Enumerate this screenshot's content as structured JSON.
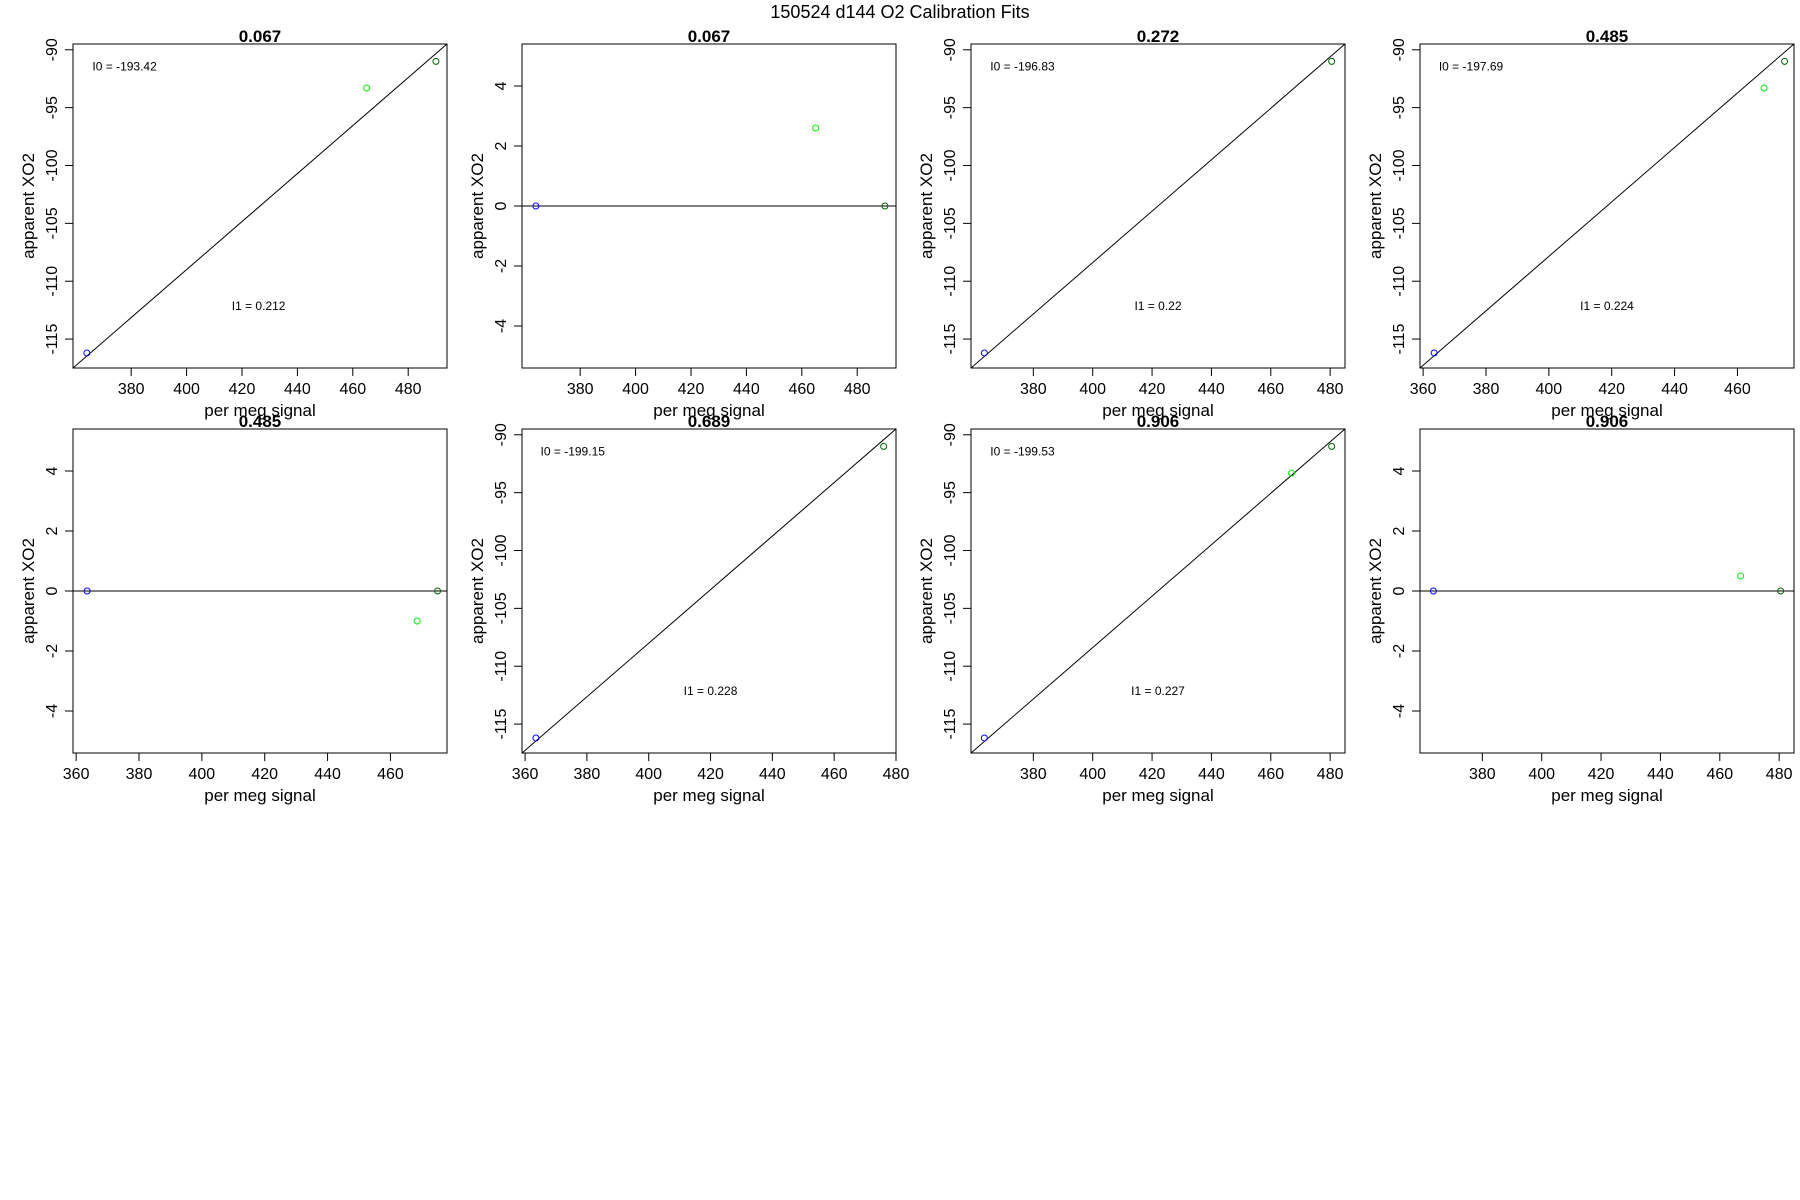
{
  "figure": {
    "title": "150524   d144   O2 Calibration Fits",
    "colors": {
      "axis": "#000000",
      "line": "#000000",
      "point_blue": "#0000ff",
      "point_light_green": "#00ee00",
      "point_dark_green": "#006400"
    }
  },
  "chart_data": [
    {
      "type": "scatter",
      "title": "0.067",
      "xlabel": "per meg signal",
      "ylabel": "apparent XO2",
      "xlim": [
        359,
        494
      ],
      "ylim": [
        -117.5,
        -89.5
      ],
      "xticks": [
        380,
        400,
        420,
        440,
        460,
        480
      ],
      "yticks": [
        -115,
        -110,
        -105,
        -100,
        -95,
        -90
      ],
      "points": [
        {
          "x": 364,
          "y": -116.2,
          "color": "point_blue"
        },
        {
          "x": 465,
          "y": -93.3,
          "color": "point_light_green"
        },
        {
          "x": 490,
          "y": -91.0,
          "color": "point_dark_green"
        }
      ],
      "fit_line": {
        "x": [
          359,
          494
        ],
        "y": [
          -117.5,
          -89.5
        ]
      },
      "annotations": [
        {
          "text": "I0 =  -193.42",
          "x": 366,
          "y": -91.8,
          "anchor": "start"
        },
        {
          "text": "I1 =  0.212",
          "x": 426,
          "y": -112.5,
          "anchor": "middle"
        }
      ]
    },
    {
      "type": "scatter",
      "title": "0.067",
      "xlabel": "per meg signal",
      "ylabel": "apparent XO2",
      "xlim": [
        359,
        494
      ],
      "ylim": [
        -5.4,
        5.4
      ],
      "xticks": [
        380,
        400,
        420,
        440,
        460,
        480
      ],
      "yticks": [
        -4,
        -2,
        0,
        2,
        4
      ],
      "points": [
        {
          "x": 364,
          "y": 0,
          "color": "point_blue"
        },
        {
          "x": 465,
          "y": 2.6,
          "color": "point_light_green"
        },
        {
          "x": 490,
          "y": 0,
          "color": "point_dark_green"
        }
      ],
      "fit_line": {
        "x": [
          359,
          494
        ],
        "y": [
          0,
          0
        ]
      },
      "annotations": []
    },
    {
      "type": "scatter",
      "title": "0.272",
      "xlabel": "per meg signal",
      "ylabel": "apparent XO2",
      "xlim": [
        359,
        485
      ],
      "ylim": [
        -117.5,
        -89.5
      ],
      "xticks": [
        380,
        400,
        420,
        440,
        460,
        480
      ],
      "yticks": [
        -115,
        -110,
        -105,
        -100,
        -95,
        -90
      ],
      "points": [
        {
          "x": 363.5,
          "y": -116.2,
          "color": "point_blue"
        },
        {
          "x": 480.5,
          "y": -91.0,
          "color": "point_dark_green"
        }
      ],
      "fit_line": {
        "x": [
          359,
          485
        ],
        "y": [
          -117.5,
          -89.5
        ]
      },
      "annotations": [
        {
          "text": "I0 =  -196.83",
          "x": 365.5,
          "y": -91.8,
          "anchor": "start"
        },
        {
          "text": "I1 =  0.22",
          "x": 422,
          "y": -112.5,
          "anchor": "middle"
        }
      ]
    },
    {
      "type": "scatter",
      "title": "0.485",
      "xlabel": "per meg signal",
      "ylabel": "apparent XO2",
      "xlim": [
        359,
        478
      ],
      "ylim": [
        -117.5,
        -89.5
      ],
      "xticks": [
        360,
        380,
        400,
        420,
        440,
        460
      ],
      "yticks": [
        -115,
        -110,
        -105,
        -100,
        -95,
        -90
      ],
      "points": [
        {
          "x": 363.5,
          "y": -116.2,
          "color": "point_blue"
        },
        {
          "x": 468.5,
          "y": -93.3,
          "color": "point_light_green"
        },
        {
          "x": 475,
          "y": -91.0,
          "color": "point_dark_green"
        }
      ],
      "fit_line": {
        "x": [
          359,
          478
        ],
        "y": [
          -117.5,
          -89.5
        ]
      },
      "annotations": [
        {
          "text": "I0 =  -197.69",
          "x": 365,
          "y": -91.8,
          "anchor": "start"
        },
        {
          "text": "I1 =  0.224",
          "x": 418.5,
          "y": -112.5,
          "anchor": "middle"
        }
      ]
    },
    {
      "type": "scatter",
      "title": "0.485",
      "xlabel": "per meg signal",
      "ylabel": "apparent XO2",
      "xlim": [
        359,
        478
      ],
      "ylim": [
        -5.4,
        5.4
      ],
      "xticks": [
        360,
        380,
        400,
        420,
        440,
        460
      ],
      "yticks": [
        -4,
        -2,
        0,
        2,
        4
      ],
      "points": [
        {
          "x": 363.5,
          "y": 0,
          "color": "point_blue"
        },
        {
          "x": 468.5,
          "y": -1.0,
          "color": "point_light_green"
        },
        {
          "x": 475,
          "y": 0,
          "color": "point_dark_green"
        }
      ],
      "fit_line": {
        "x": [
          359,
          478
        ],
        "y": [
          0,
          0
        ]
      },
      "annotations": []
    },
    {
      "type": "scatter",
      "title": "0.689",
      "xlabel": "per meg signal",
      "ylabel": "apparent XO2",
      "xlim": [
        359,
        480
      ],
      "ylim": [
        -117.5,
        -89.5
      ],
      "xticks": [
        360,
        380,
        400,
        420,
        440,
        460,
        480
      ],
      "yticks": [
        -115,
        -110,
        -105,
        -100,
        -95,
        -90
      ],
      "points": [
        {
          "x": 363.5,
          "y": -116.2,
          "color": "point_blue"
        },
        {
          "x": 476,
          "y": -91.0,
          "color": "point_dark_green"
        }
      ],
      "fit_line": {
        "x": [
          359,
          480
        ],
        "y": [
          -117.5,
          -89.5
        ]
      },
      "annotations": [
        {
          "text": "I0 =  -199.15",
          "x": 365,
          "y": -91.8,
          "anchor": "start"
        },
        {
          "text": "I1 =  0.228",
          "x": 420,
          "y": -112.5,
          "anchor": "middle"
        }
      ]
    },
    {
      "type": "scatter",
      "title": "0.906",
      "xlabel": "per meg signal",
      "ylabel": "apparent XO2",
      "xlim": [
        359,
        485
      ],
      "ylim": [
        -117.5,
        -89.5
      ],
      "xticks": [
        380,
        400,
        420,
        440,
        460,
        480
      ],
      "yticks": [
        -115,
        -110,
        -105,
        -100,
        -95,
        -90
      ],
      "points": [
        {
          "x": 363.5,
          "y": -116.2,
          "color": "point_blue"
        },
        {
          "x": 467,
          "y": -93.3,
          "color": "point_light_green"
        },
        {
          "x": 480.5,
          "y": -91.0,
          "color": "point_dark_green"
        }
      ],
      "fit_line": {
        "x": [
          359,
          485
        ],
        "y": [
          -117.5,
          -89.5
        ]
      },
      "annotations": [
        {
          "text": "I0 =  -199.53",
          "x": 365.5,
          "y": -91.8,
          "anchor": "start"
        },
        {
          "text": "I1 =  0.227",
          "x": 422,
          "y": -112.5,
          "anchor": "middle"
        }
      ]
    },
    {
      "type": "scatter",
      "title": "0.906",
      "xlabel": "per meg signal",
      "ylabel": "apparent XO2",
      "xlim": [
        359,
        485
      ],
      "ylim": [
        -5.4,
        5.4
      ],
      "xticks": [
        380,
        400,
        420,
        440,
        460,
        480
      ],
      "yticks": [
        -4,
        -2,
        0,
        2,
        4
      ],
      "points": [
        {
          "x": 363.5,
          "y": 0,
          "color": "point_blue"
        },
        {
          "x": 467,
          "y": 0.5,
          "color": "point_light_green"
        },
        {
          "x": 480.5,
          "y": 0,
          "color": "point_dark_green"
        }
      ],
      "fit_line": {
        "x": [
          359,
          485
        ],
        "y": [
          0,
          0
        ]
      },
      "annotations": []
    }
  ]
}
